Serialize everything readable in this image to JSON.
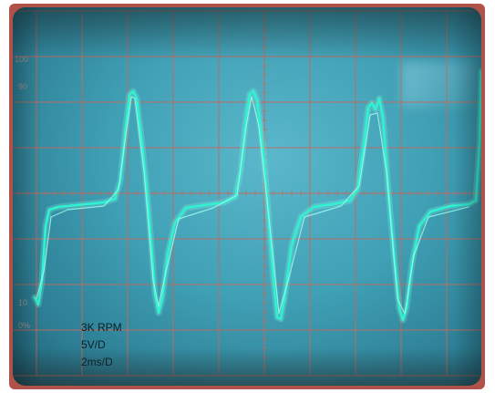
{
  "screen": {
    "scale_top": "100",
    "scale_upper": "90",
    "scale_lower": "10",
    "scale_bottom": "0%"
  },
  "annotations": {
    "speed": "3K RPM",
    "vertical_scale": "5V/D",
    "time_scale": "2ms/D"
  },
  "colors": {
    "bezel": "#b0524a",
    "screen": "#4aa9bd",
    "trace": "#2ef2d0",
    "graticule": "#c46a60"
  }
}
